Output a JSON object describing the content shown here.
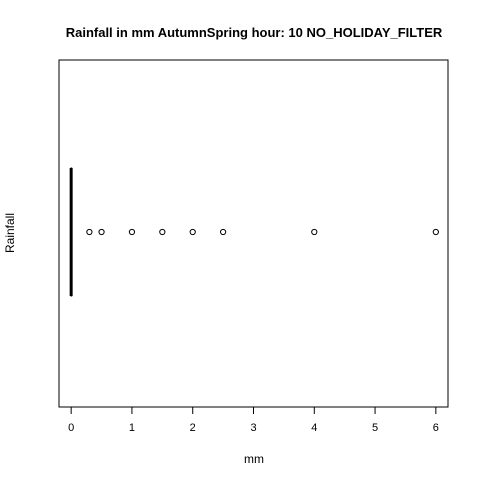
{
  "chart_data": {
    "type": "boxplot",
    "orientation": "horizontal",
    "title": "Rainfall in mm AutumnSpring hour: 10 NO_HOLIDAY_FILTER",
    "xlabel": "mm",
    "ylabel": "Rainfall",
    "xlim": [
      -0.2,
      6.2
    ],
    "x_ticks": [
      0,
      1,
      2,
      3,
      4,
      5,
      6
    ],
    "grid": false,
    "series": [
      {
        "box": {
          "min": 0,
          "q1": 0,
          "median": 0,
          "q3": 0,
          "max": 0
        },
        "outliers": [
          0.3,
          0.5,
          1.0,
          1.5,
          2.0,
          2.5,
          4.0,
          6.0
        ]
      }
    ]
  }
}
